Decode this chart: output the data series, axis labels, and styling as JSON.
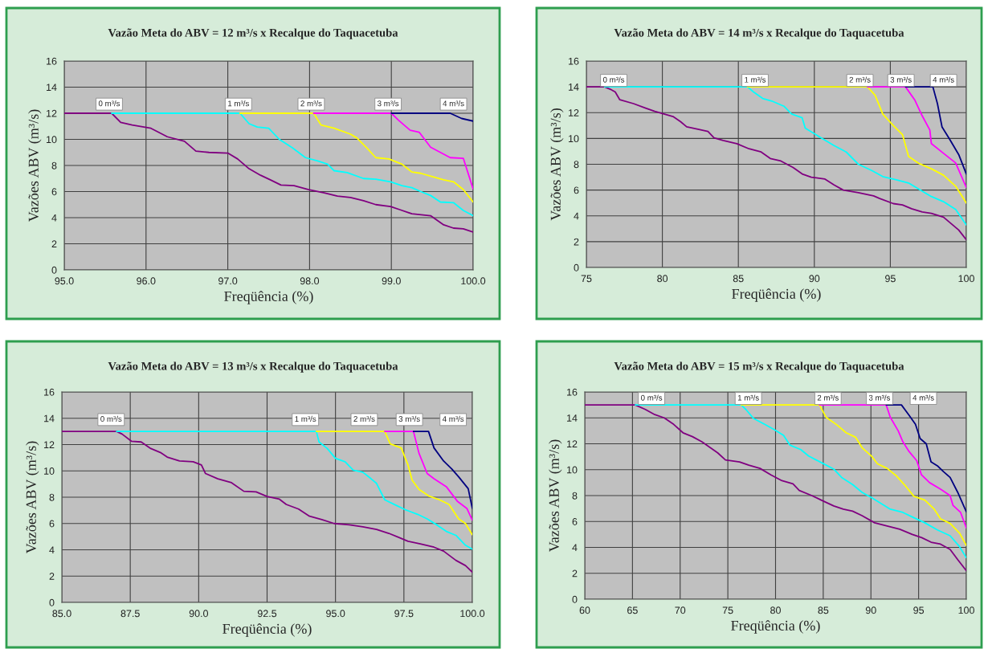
{
  "chart_data": [
    {
      "type": "line",
      "title": "Vazão Meta do ABV = 12 m³/s x Recalque do Taquacetuba",
      "xlabel": "Freqüência (%)",
      "ylabel": "Vazões ABV (m³/s)",
      "xlim": [
        95,
        100
      ],
      "xticks": [
        {
          "value": 95,
          "label": "95.0"
        },
        {
          "value": 96,
          "label": "96.0"
        },
        {
          "value": 97,
          "label": "97.0"
        },
        {
          "value": 98,
          "label": "98.0"
        },
        {
          "value": 99,
          "label": "99.0"
        },
        {
          "value": 100,
          "label": "100.0"
        }
      ],
      "ylim": [
        0,
        16
      ],
      "yticks": [
        0,
        2,
        4,
        6,
        8,
        10,
        12,
        14,
        16
      ],
      "grid": true,
      "series": [
        {
          "color": "#800080",
          "x": [
            95.0,
            95.58,
            95.69,
            95.83,
            96.06,
            96.26,
            96.47,
            96.61,
            96.77,
            97.0,
            97.12,
            97.26,
            97.4,
            97.52,
            97.65,
            97.81,
            97.99,
            98.18,
            98.34,
            98.5,
            98.66,
            98.81,
            98.99,
            99.11,
            99.25,
            99.48,
            99.64,
            99.76,
            99.88,
            100.0
          ],
          "values": [
            12,
            12,
            11.3,
            11.1,
            10.85,
            10.2,
            9.85,
            9.1,
            9.0,
            8.95,
            8.5,
            7.75,
            7.25,
            6.9,
            6.5,
            6.45,
            6.15,
            5.9,
            5.65,
            5.55,
            5.3,
            5.0,
            4.85,
            4.6,
            4.3,
            4.15,
            3.45,
            3.2,
            3.15,
            2.9
          ]
        },
        {
          "color": "#00ffff",
          "x": [
            95.58,
            97.15,
            97.26,
            97.36,
            97.5,
            97.63,
            97.79,
            97.95,
            98.1,
            98.22,
            98.3,
            98.46,
            98.66,
            98.81,
            98.99,
            99.13,
            99.25,
            99.36,
            99.48,
            99.6,
            99.76,
            99.88,
            100.0
          ],
          "values": [
            12,
            12,
            11.2,
            10.95,
            10.85,
            10.0,
            9.35,
            8.6,
            8.35,
            8.1,
            7.6,
            7.45,
            7.0,
            6.95,
            6.75,
            6.45,
            6.3,
            6.0,
            5.7,
            5.2,
            5.15,
            4.55,
            4.15
          ]
        },
        {
          "color": "#ffff00",
          "x": [
            97.15,
            98.05,
            98.14,
            98.3,
            98.5,
            98.58,
            98.7,
            98.81,
            98.97,
            99.13,
            99.25,
            99.36,
            99.5,
            99.64,
            99.76,
            99.88,
            100.0
          ],
          "values": [
            12,
            12,
            11.1,
            10.85,
            10.4,
            10.1,
            9.35,
            8.6,
            8.5,
            8.1,
            7.5,
            7.4,
            7.15,
            6.9,
            6.75,
            6.15,
            5.2
          ]
        },
        {
          "color": "#ff00ff",
          "x": [
            98.05,
            99.0,
            99.09,
            99.23,
            99.34,
            99.48,
            99.72,
            99.88,
            100.0
          ],
          "values": [
            12,
            12,
            11.45,
            10.7,
            10.55,
            9.4,
            8.6,
            8.55,
            6.2
          ]
        },
        {
          "color": "#000080",
          "x": [
            99.0,
            99.72,
            99.86,
            100.0
          ],
          "values": [
            12,
            12,
            11.6,
            11.4
          ]
        }
      ],
      "annotations": [
        {
          "text": "0 m³/s",
          "x": 95.55,
          "y": 12.7
        },
        {
          "text": "1 m³/s",
          "x": 97.13,
          "y": 12.7
        },
        {
          "text": "2 m³/s",
          "x": 98.02,
          "y": 12.7
        },
        {
          "text": "3 m³/s",
          "x": 98.96,
          "y": 12.7
        },
        {
          "text": "4 m³/s",
          "x": 99.76,
          "y": 12.7
        }
      ]
    },
    {
      "type": "line",
      "title": "Vazão Meta do ABV = 14 m³/s x Recalque do Taquacetuba",
      "xlabel": "Freqüência (%)",
      "ylabel": "Vazões ABV (m³/s)",
      "xlim": [
        75,
        100
      ],
      "xticks": [
        75,
        80,
        85,
        90,
        95,
        100
      ],
      "ylim": [
        0,
        16
      ],
      "yticks": [
        0,
        2,
        4,
        6,
        8,
        10,
        12,
        14,
        16
      ],
      "grid": true,
      "series": [
        {
          "color": "#800080",
          "x": [
            75,
            76.2,
            76.6,
            76.9,
            77.2,
            78.1,
            78.9,
            79.5,
            80.1,
            80.7,
            81.2,
            81.6,
            82.4,
            83.0,
            83.4,
            84.0,
            84.9,
            85.7,
            86.5,
            87.1,
            87.8,
            88.6,
            89.2,
            89.8,
            90.7,
            91.3,
            91.9,
            92.9,
            93.9,
            94.3,
            95.2,
            95.8,
            96.4,
            97.1,
            97.7,
            98.5,
            99.0,
            99.5,
            100
          ],
          "values": [
            14,
            14,
            13.8,
            13.6,
            13.0,
            12.7,
            12.35,
            12.1,
            11.9,
            11.7,
            11.3,
            10.9,
            10.7,
            10.55,
            10.05,
            9.85,
            9.6,
            9.2,
            8.95,
            8.45,
            8.25,
            7.75,
            7.25,
            7.0,
            6.85,
            6.4,
            6.0,
            5.8,
            5.55,
            5.35,
            4.95,
            4.85,
            4.55,
            4.3,
            4.2,
            3.9,
            3.4,
            2.9,
            2.15
          ]
        },
        {
          "color": "#00ffff",
          "x": [
            76.2,
            85.6,
            86.0,
            86.6,
            87.2,
            88.0,
            88.5,
            89.2,
            89.4,
            90.3,
            91.3,
            92.1,
            92.9,
            93.8,
            94.5,
            95.4,
            96.2,
            96.9,
            97.7,
            98.5,
            99.3,
            100
          ],
          "values": [
            14,
            14,
            13.6,
            13.1,
            12.9,
            12.5,
            11.9,
            11.6,
            10.8,
            10.15,
            9.45,
            8.95,
            8.0,
            7.5,
            7.05,
            6.8,
            6.55,
            6.05,
            5.5,
            5.1,
            4.5,
            3.3
          ]
        },
        {
          "color": "#ffff00",
          "x": [
            85.6,
            93.5,
            94.0,
            94.5,
            95.2,
            95.8,
            96.2,
            96.9,
            97.7,
            98.5,
            99.3,
            100
          ],
          "values": [
            14,
            14,
            13.35,
            11.9,
            11.0,
            10.3,
            8.6,
            8.05,
            7.65,
            7.15,
            6.3,
            5.0
          ]
        },
        {
          "color": "#ff00ff",
          "x": [
            93.5,
            96.0,
            96.6,
            97.1,
            97.6,
            97.7,
            98.5,
            99.3,
            100
          ],
          "values": [
            14,
            14,
            13.0,
            11.75,
            10.65,
            9.6,
            8.85,
            8.1,
            6.2
          ]
        },
        {
          "color": "#000080",
          "x": [
            96.0,
            97.8,
            98.1,
            98.4,
            98.9,
            99.5,
            100
          ],
          "values": [
            14,
            14,
            12.7,
            10.9,
            9.95,
            8.75,
            7.25
          ]
        }
      ],
      "annotations": [
        {
          "text": "0 m³/s",
          "x": 76.8,
          "y": 14.5
        },
        {
          "text": "1 m³/s",
          "x": 86.1,
          "y": 14.5
        },
        {
          "text": "2 m³/s",
          "x": 93.0,
          "y": 14.5
        },
        {
          "text": "3 m³/s",
          "x": 95.7,
          "y": 14.5
        },
        {
          "text": "4 m³/s",
          "x": 98.5,
          "y": 14.5
        }
      ]
    },
    {
      "type": "line",
      "title": "Vazão Meta do ABV = 13 m³/s x Recalque do Taquacetuba",
      "xlabel": "Freqüência (%)",
      "ylabel": "Vazões ABV (m³/s)",
      "xlim": [
        85,
        100
      ],
      "xticks": [
        {
          "value": 85,
          "label": "85.0"
        },
        {
          "value": 87.5,
          "label": "87.5"
        },
        {
          "value": 90,
          "label": "90.0"
        },
        {
          "value": 92.5,
          "label": "92.5"
        },
        {
          "value": 95,
          "label": "95.0"
        },
        {
          "value": 97.5,
          "label": "97.5"
        },
        {
          "value": 100,
          "label": "100.0"
        }
      ],
      "ylim": [
        0,
        16
      ],
      "yticks": [
        0,
        2,
        4,
        6,
        8,
        10,
        12,
        14,
        16
      ],
      "grid": true,
      "series": [
        {
          "color": "#800080",
          "x": [
            85,
            87.0,
            87.2,
            87.55,
            87.9,
            88.25,
            88.6,
            88.85,
            89.3,
            89.8,
            90.1,
            90.25,
            90.7,
            91.2,
            91.65,
            92.1,
            92.5,
            92.95,
            93.2,
            93.65,
            94.05,
            94.5,
            94.95,
            95.5,
            96.0,
            96.5,
            96.95,
            97.3,
            97.65,
            98.1,
            98.6,
            98.95,
            99.4,
            99.75,
            100
          ],
          "values": [
            13,
            13,
            12.8,
            12.25,
            12.2,
            11.7,
            11.4,
            11.05,
            10.75,
            10.7,
            10.45,
            9.8,
            9.4,
            9.1,
            8.45,
            8.4,
            8.05,
            7.85,
            7.45,
            7.1,
            6.55,
            6.3,
            6.0,
            5.9,
            5.75,
            5.55,
            5.25,
            4.95,
            4.65,
            4.45,
            4.2,
            3.9,
            3.2,
            2.8,
            2.3
          ]
        },
        {
          "color": "#00ffff",
          "x": [
            87.0,
            94.3,
            94.4,
            94.7,
            95.0,
            95.35,
            95.65,
            96.0,
            96.3,
            96.5,
            96.8,
            97.2,
            97.55,
            98.0,
            98.35,
            98.7,
            99.05,
            99.4,
            99.75,
            100
          ],
          "values": [
            13,
            13,
            12.2,
            11.7,
            10.95,
            10.7,
            10.05,
            9.9,
            9.4,
            9.05,
            7.8,
            7.4,
            7.05,
            6.7,
            6.35,
            5.9,
            5.4,
            5.1,
            4.35,
            4.05
          ]
        },
        {
          "color": "#ffff00",
          "x": [
            94.3,
            96.8,
            97.0,
            97.4,
            97.65,
            97.8,
            98.05,
            98.4,
            98.8,
            99.15,
            99.5,
            99.75,
            100
          ],
          "values": [
            13,
            13,
            12.05,
            11.75,
            10.45,
            9.3,
            8.6,
            8.1,
            7.8,
            7.45,
            6.35,
            6.0,
            5.15
          ]
        },
        {
          "color": "#ff00ff",
          "x": [
            96.8,
            97.85,
            98.05,
            98.35,
            98.6,
            99.05,
            99.45,
            99.8,
            100
          ],
          "values": [
            13,
            13,
            11.35,
            9.8,
            9.4,
            8.8,
            7.7,
            7.15,
            6.25
          ]
        },
        {
          "color": "#000080",
          "x": [
            97.85,
            98.4,
            98.6,
            98.95,
            99.25,
            99.5,
            99.85,
            100
          ],
          "values": [
            13,
            13,
            11.75,
            10.75,
            10.15,
            9.55,
            8.65,
            7.15
          ]
        }
      ],
      "annotations": [
        {
          "text": "0 m³/s",
          "x": 86.8,
          "y": 13.9
        },
        {
          "text": "1 m³/s",
          "x": 93.9,
          "y": 13.9
        },
        {
          "text": "2 m³/s",
          "x": 96.05,
          "y": 13.9
        },
        {
          "text": "3 m³/s",
          "x": 97.7,
          "y": 13.9
        },
        {
          "text": "4 m³/s",
          "x": 99.3,
          "y": 13.9
        }
      ]
    },
    {
      "type": "line",
      "title": "Vazão Meta do ABV = 15 m³/s x Recalque do Taquacetuba",
      "xlabel": "Freqüência (%)",
      "ylabel": "Vazões ABV (m³/s)",
      "xlim": [
        60,
        100
      ],
      "xticks": [
        60,
        65,
        70,
        75,
        80,
        85,
        90,
        95,
        100
      ],
      "ylim": [
        0,
        16
      ],
      "yticks": [
        0,
        2,
        4,
        6,
        8,
        10,
        12,
        14,
        16
      ],
      "grid": true,
      "series": [
        {
          "color": "#800080",
          "x": [
            60,
            65.3,
            66.35,
            67.34,
            68.33,
            69.32,
            70.3,
            71.29,
            72.28,
            73.27,
            73.93,
            74.75,
            76.23,
            77.2,
            78.37,
            79.52,
            80.67,
            81.83,
            82.49,
            83.8,
            84.79,
            86.1,
            87.1,
            88.08,
            89.07,
            90.39,
            91.7,
            93.02,
            94.34,
            95.33,
            96.31,
            97.3,
            98.3,
            99.1,
            100
          ],
          "values": [
            15,
            15,
            14.65,
            14.25,
            14.0,
            13.5,
            12.85,
            12.55,
            12.15,
            11.65,
            11.3,
            10.75,
            10.6,
            10.35,
            10.1,
            9.6,
            9.15,
            8.9,
            8.4,
            8.0,
            7.65,
            7.2,
            6.95,
            6.8,
            6.45,
            5.9,
            5.65,
            5.4,
            5.0,
            4.75,
            4.4,
            4.25,
            3.85,
            3.05,
            2.2
          ]
        },
        {
          "color": "#00ffff",
          "x": [
            65.3,
            76.4,
            76.89,
            77.7,
            78.86,
            79.85,
            80.84,
            81.5,
            82.65,
            83.47,
            84.79,
            86.1,
            86.93,
            88.08,
            89.07,
            90.06,
            91.05,
            92.03,
            93.35,
            94.34,
            95.65,
            96.97,
            98.3,
            99.3,
            100
          ],
          "values": [
            15,
            15,
            14.65,
            13.95,
            13.5,
            13.1,
            12.65,
            11.9,
            11.55,
            11.05,
            10.55,
            10.05,
            9.4,
            8.85,
            8.25,
            7.85,
            7.4,
            6.95,
            6.7,
            6.35,
            5.9,
            5.35,
            4.9,
            4.05,
            3.2
          ]
        },
        {
          "color": "#ffff00",
          "x": [
            76.4,
            84.6,
            85.3,
            86.45,
            87.4,
            88.4,
            89.07,
            90.06,
            90.7,
            91.7,
            92.7,
            93.5,
            94.5,
            95.65,
            96.64,
            97.3,
            98.3,
            99.3,
            100
          ],
          "values": [
            15,
            15,
            14.05,
            13.45,
            12.85,
            12.5,
            11.7,
            11.05,
            10.45,
            10.1,
            9.5,
            8.85,
            7.95,
            7.65,
            6.95,
            6.2,
            5.85,
            5.1,
            4.15
          ]
        },
        {
          "color": "#ff00ff",
          "x": [
            84.6,
            91.6,
            92.03,
            92.86,
            93.35,
            94.0,
            94.8,
            95.3,
            96.15,
            97.3,
            98.3,
            98.6,
            99.4,
            100
          ],
          "values": [
            15,
            15,
            14.05,
            13.0,
            12.15,
            11.4,
            10.7,
            9.6,
            9.0,
            8.5,
            8.0,
            7.25,
            6.7,
            5.5
          ]
        },
        {
          "color": "#000080",
          "x": [
            91.6,
            93.2,
            94.0,
            94.67,
            95.16,
            95.8,
            96.3,
            96.97,
            97.6,
            98.3,
            99.1,
            100
          ],
          "values": [
            15,
            15,
            14.2,
            13.5,
            12.4,
            12.0,
            10.6,
            10.3,
            9.85,
            9.4,
            8.25,
            6.75
          ]
        }
      ],
      "annotations": [
        {
          "text": "0 m³/s",
          "x": 67.0,
          "y": 15.5
        },
        {
          "text": "1 m³/s",
          "x": 77.15,
          "y": 15.5
        },
        {
          "text": "2 m³/s",
          "x": 85.5,
          "y": 15.5
        },
        {
          "text": "3 m³/s",
          "x": 90.9,
          "y": 15.5
        },
        {
          "text": "4 m³/s",
          "x": 95.5,
          "y": 15.5
        }
      ]
    }
  ]
}
